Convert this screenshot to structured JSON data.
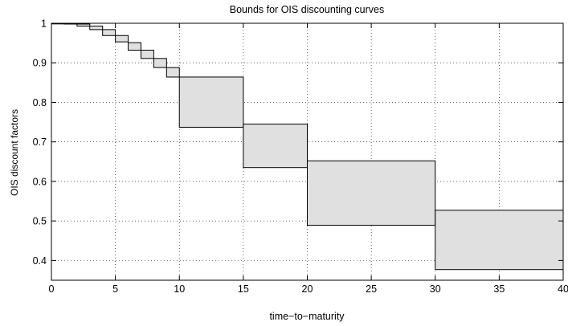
{
  "chart_data": {
    "type": "area",
    "title": "Bounds for OIS discounting curves",
    "xlabel": "time−to−maturity",
    "ylabel": "OIS discount factors",
    "xlim": [
      0,
      40
    ],
    "ylim": [
      0.35,
      1.0
    ],
    "xticks": [
      0,
      5,
      10,
      15,
      20,
      25,
      30,
      35,
      40
    ],
    "yticks": [
      0.4,
      0.5,
      0.6,
      0.7,
      0.8,
      0.9,
      1
    ],
    "xtick_labels": [
      "0",
      "5",
      "10",
      "15",
      "20",
      "25",
      "30",
      "35",
      "40"
    ],
    "ytick_labels": [
      "0.4",
      "0.5",
      "0.6",
      "0.7",
      "0.8",
      "0.9",
      "1"
    ],
    "grid": true,
    "fill_color": "#e0e0e0",
    "series": [
      {
        "x": [
          0,
          1,
          2,
          3,
          4,
          5,
          6,
          7,
          8,
          9,
          10,
          15,
          20,
          30,
          40
        ],
        "lower": [
          1.0,
          0.998,
          0.993,
          0.984,
          0.969,
          0.953,
          0.932,
          0.911,
          0.888,
          0.864,
          0.737,
          0.635,
          0.489,
          0.377,
          0.377
        ],
        "upper": [
          1.0,
          1.0,
          0.998,
          0.993,
          0.984,
          0.969,
          0.951,
          0.932,
          0.911,
          0.888,
          0.864,
          0.745,
          0.652,
          0.527,
          0.527
        ]
      }
    ]
  }
}
